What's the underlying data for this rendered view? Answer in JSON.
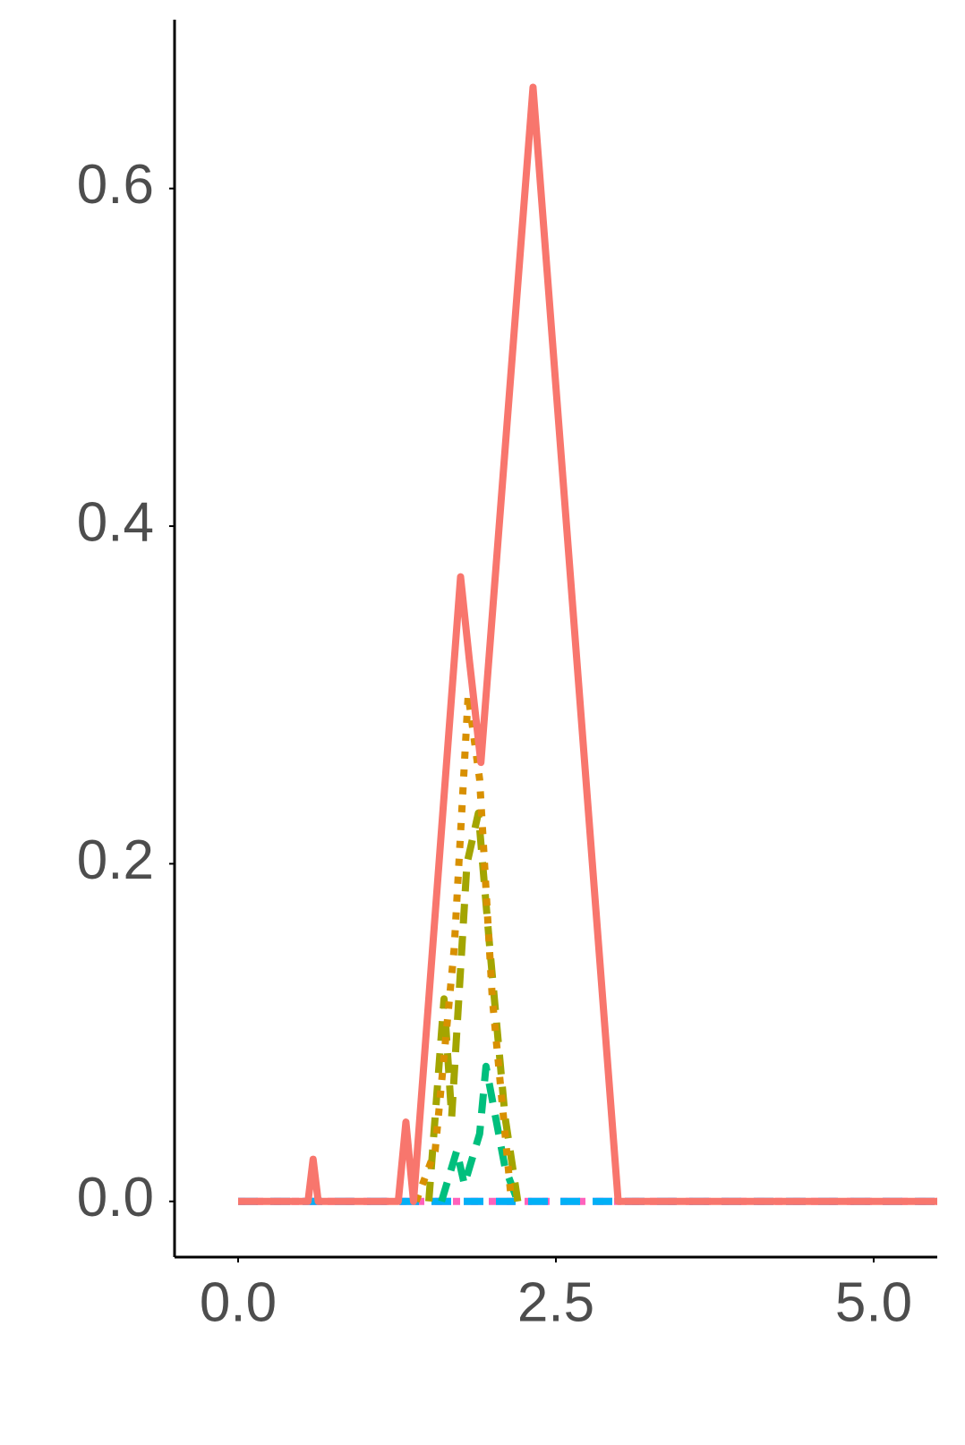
{
  "chart_data": {
    "type": "line",
    "xlim": [
      -0.5,
      5.5
    ],
    "ylim": [
      -0.033,
      0.7
    ],
    "xticks": [
      {
        "value": 0,
        "label": "0.0"
      },
      2.5,
      {
        "value": 5,
        "label": "5.0"
      }
    ],
    "yticks": [
      {
        "value": 0,
        "label": "0.0"
      },
      0.2,
      0.4,
      0.6
    ],
    "grid": false,
    "series": [
      {
        "color": "#f8766d",
        "dash": "solid",
        "x": [
          0,
          0.55,
          0.59,
          0.63,
          1.26,
          1.32,
          1.38,
          1.75,
          1.82,
          1.91,
          2.32,
          2.99,
          5.5
        ],
        "values": [
          0,
          0,
          0.025,
          0,
          0,
          0.047,
          0,
          0.37,
          0.32,
          0.26,
          0.66,
          0,
          0
        ]
      },
      {
        "color": "#d89000",
        "dash": "dotted",
        "x": [
          1.4,
          1.55,
          1.7,
          1.81,
          1.9,
          2.0,
          2.15
        ],
        "values": [
          0,
          0.03,
          0.15,
          0.3,
          0.25,
          0.12,
          0
        ]
      },
      {
        "color": "#a3a500",
        "dash": "dashed",
        "x": [
          1.5,
          1.62,
          1.68,
          1.8,
          1.89,
          1.98,
          2.1,
          2.2
        ],
        "values": [
          0,
          0.12,
          0.05,
          0.2,
          0.23,
          0.15,
          0.05,
          0
        ]
      },
      {
        "color": "#00bf7d",
        "dash": "dashed",
        "x": [
          1.6,
          1.72,
          1.78,
          1.9,
          1.95,
          2.05,
          2.1,
          2.2
        ],
        "values": [
          0,
          0.03,
          0.01,
          0.04,
          0.08,
          0.04,
          0.02,
          0
        ]
      },
      {
        "color": "#00b0f6",
        "dash": "dashed",
        "x": [
          0,
          5.5
        ],
        "values": [
          0,
          0
        ]
      },
      {
        "color": "#e76bf3",
        "dash": "dashed",
        "x": [
          0,
          5.5
        ],
        "values": [
          0,
          0
        ]
      },
      {
        "color": "#ff62bc",
        "dash": "dotted",
        "x": [
          0,
          5.5
        ],
        "values": [
          0,
          0
        ]
      }
    ]
  }
}
